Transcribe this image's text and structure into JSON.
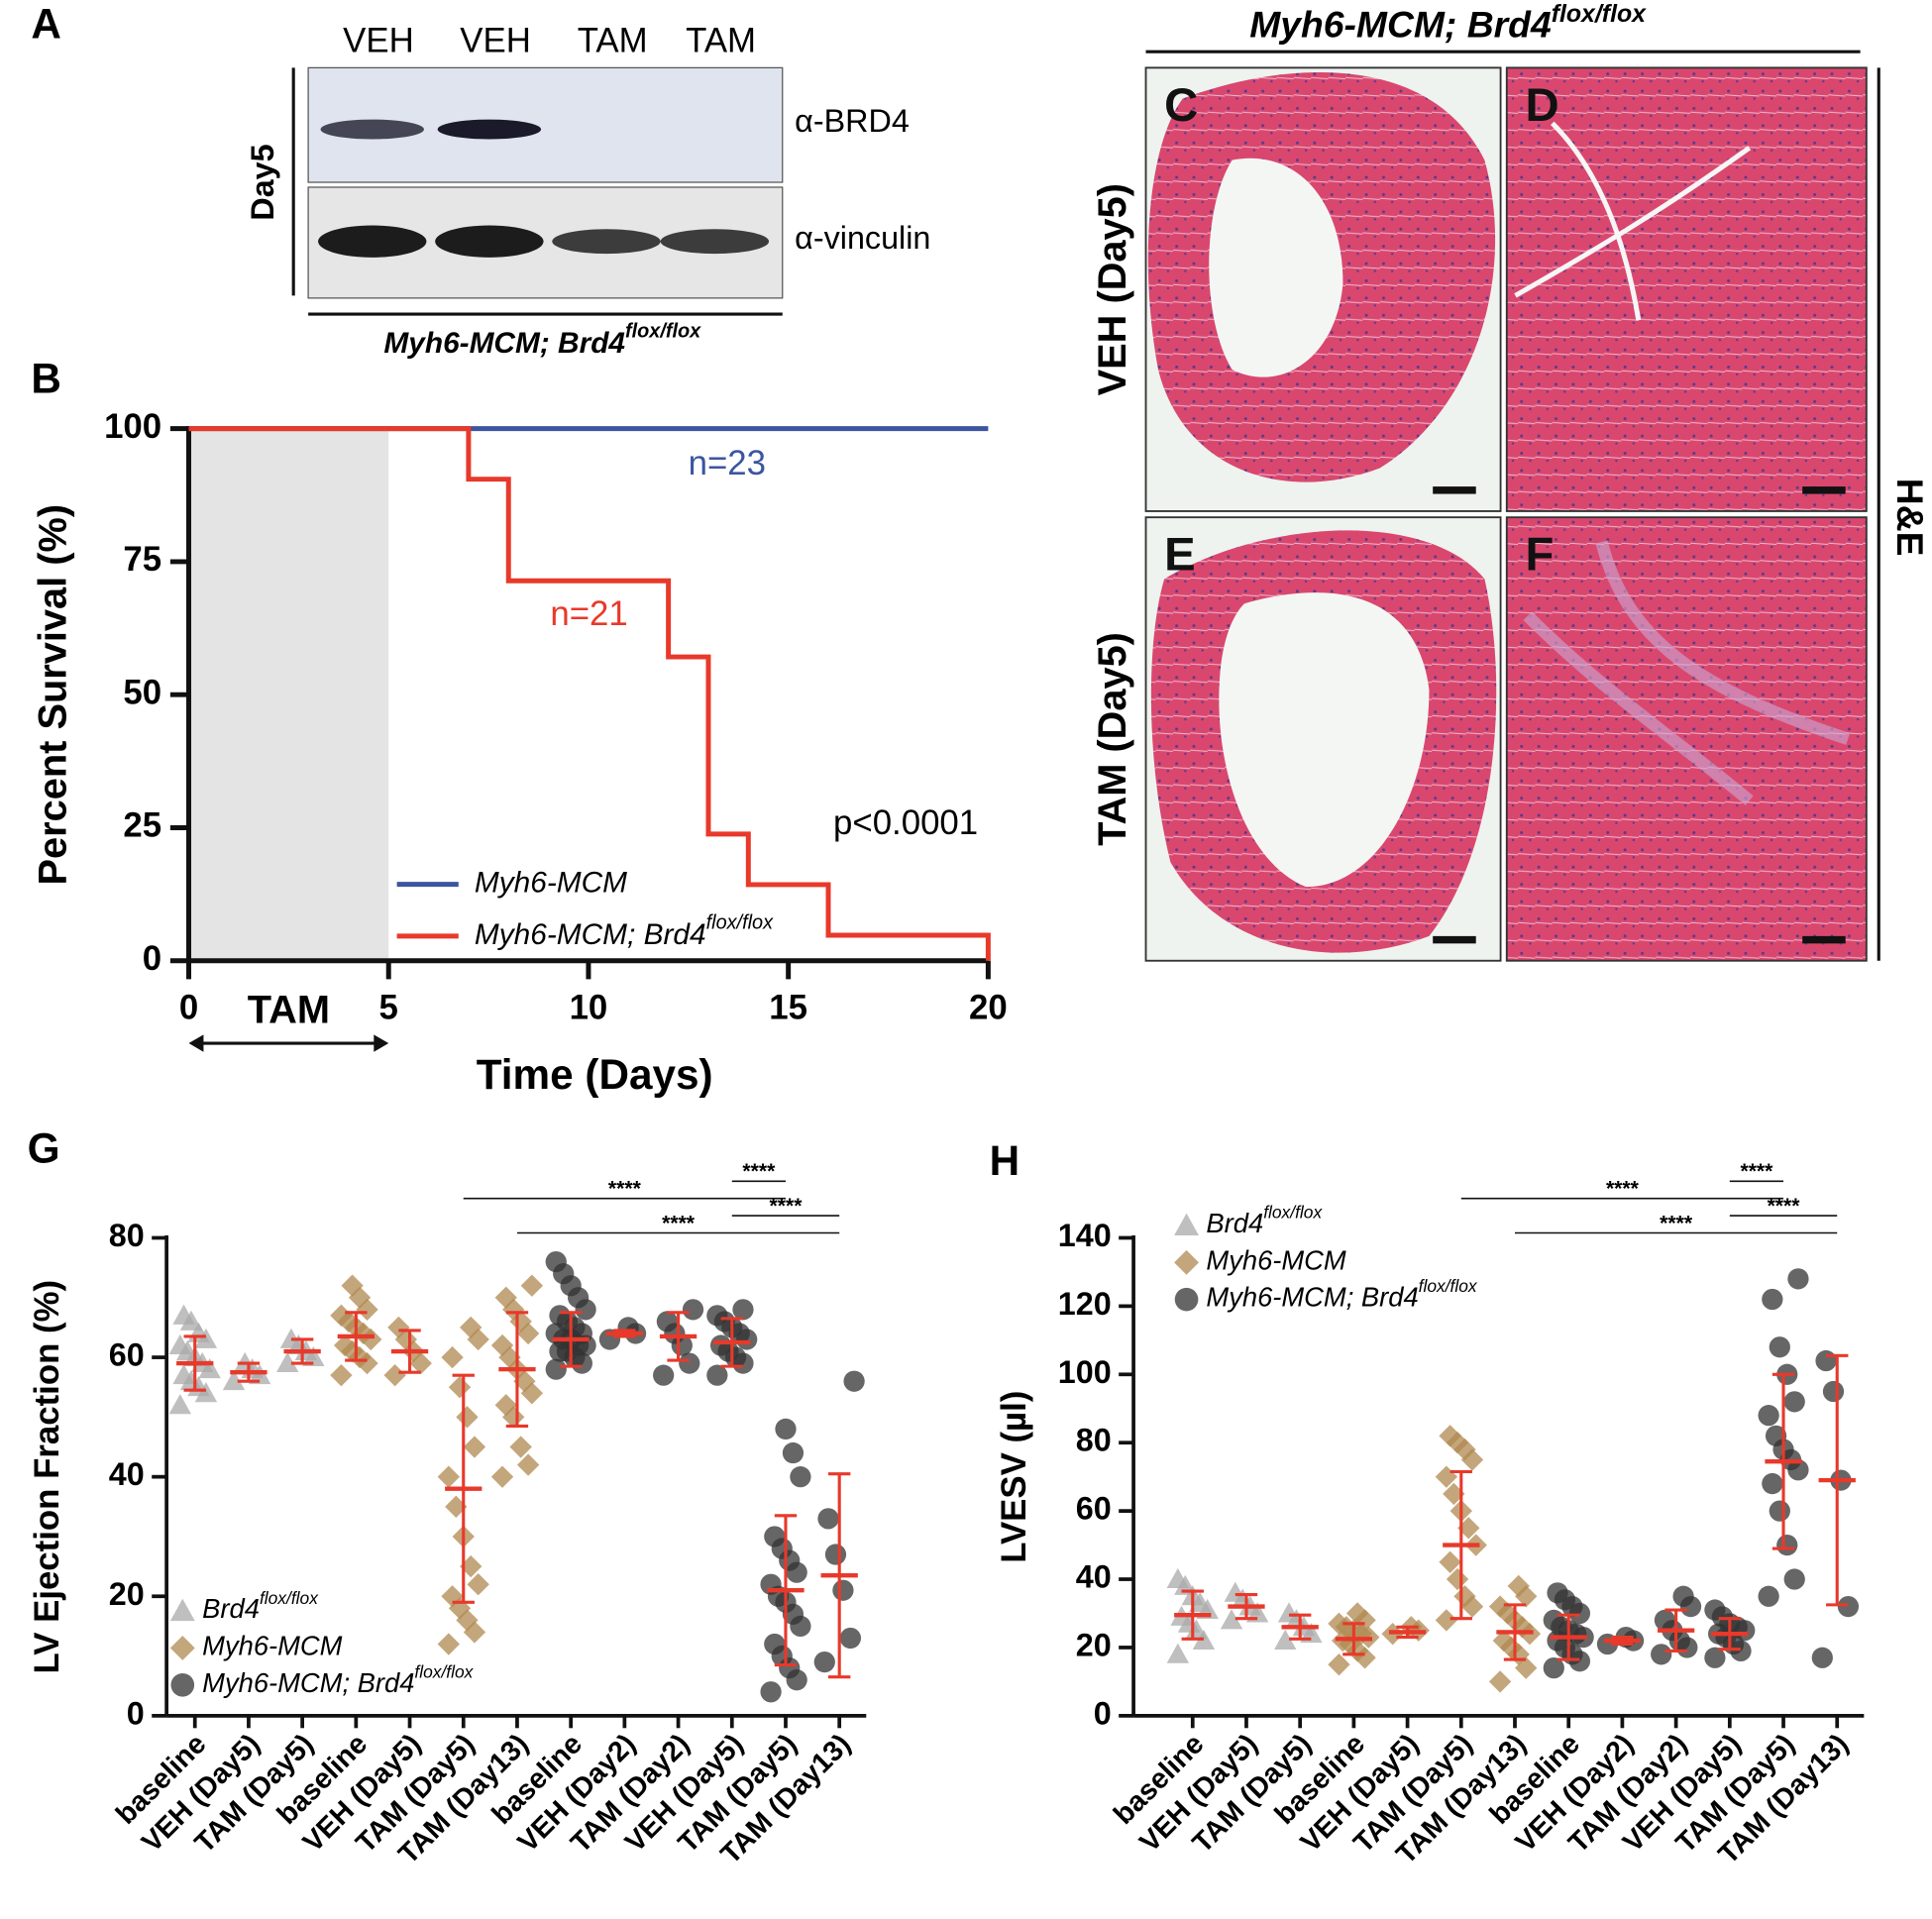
{
  "figure": {
    "panel_A": {
      "letter": "A",
      "lanes": [
        "VEH",
        "VEH",
        "TAM",
        "TAM"
      ],
      "timepoint": "Day5",
      "antibodies": [
        "α-BRD4",
        "α-vinculin"
      ],
      "genotype": "Myh6-MCM; Brd4",
      "genotype_sup": "flox/flox"
    },
    "panel_histology": {
      "letters": [
        "C",
        "D",
        "E",
        "F"
      ],
      "title": "Myh6-MCM; Brd4",
      "title_sup": "flox/flox",
      "rows": [
        "VEH (Day5)",
        "TAM (Day5)"
      ],
      "stain": "H&E"
    }
  },
  "chart_data": [
    {
      "panel": "B",
      "type": "step",
      "ylabel": "Percent Survival (%)",
      "xlabel": "Time (Days)",
      "x": [
        0,
        7,
        8,
        12,
        13,
        14,
        16,
        20
      ],
      "series": [
        {
          "name": "Myh6-MCM",
          "color": "#3b55a0",
          "values": [
            100,
            100,
            100,
            100,
            100,
            100,
            100,
            100
          ],
          "annotation": "n=23"
        },
        {
          "name": "Myh6-MCM; Brd4",
          "name_sup": "flox/flox",
          "color": "#e8392a",
          "values": [
            100,
            90.5,
            71.4,
            57.1,
            23.8,
            14.3,
            4.8,
            0
          ],
          "annotation": "n=21"
        }
      ],
      "xlim": [
        0,
        20
      ],
      "ylim": [
        0,
        100
      ],
      "xticks": [
        0,
        5,
        10,
        15,
        20
      ],
      "yticks": [
        0,
        25,
        50,
        75,
        100
      ],
      "shade": [
        0,
        5
      ],
      "shade_label": "TAM",
      "annotation": "p<0.0001",
      "legend": "lower left"
    },
    {
      "panel": "G",
      "type": "dot",
      "ylabel": "LV Ejection Fraction (%)",
      "categories": [
        "baseline",
        "VEH (Day5)",
        "TAM (Day5)",
        "baseline",
        "VEH (Day5)",
        "TAM (Day5)",
        "TAM (Day13)",
        "baseline",
        "VEH (Day2)",
        "TAM (Day2)",
        "VEH (Day5)",
        "TAM (Day5)",
        "TAM (Day13)"
      ],
      "ylim": [
        0,
        80
      ],
      "yticks": [
        0,
        20,
        40,
        60,
        80
      ],
      "legend": "lower left",
      "error_color": "#e8392a",
      "series": [
        {
          "name": "Brd4",
          "name_sup": "flox/flox",
          "color": "#aaaaaa",
          "marker": "triangle",
          "points": [
            [
              52,
              54,
              55,
              56,
              57,
              58,
              59,
              60,
              61,
              62,
              63,
              64,
              66,
              67
            ],
            [
              56,
              57,
              58,
              59
            ],
            [
              59,
              60,
              61,
              62,
              63
            ],
            null,
            null,
            null,
            null,
            null,
            null,
            null,
            null,
            null,
            null
          ],
          "mean": [
            59,
            57.5,
            61,
            null,
            null,
            null,
            null,
            null,
            null,
            null,
            null,
            null,
            null
          ],
          "sd": [
            4.5,
            1.5,
            2,
            null,
            null,
            null,
            null,
            null,
            null,
            null,
            null,
            null,
            null
          ]
        },
        {
          "name": "Myh6-MCM",
          "color": "#b08850",
          "marker": "diamond",
          "points": [
            null,
            null,
            null,
            [
              57,
              59,
              60,
              61,
              62,
              63,
              64,
              65,
              66,
              67,
              68,
              70,
              72
            ],
            [
              57,
              59,
              61,
              63,
              65
            ],
            [
              12,
              14,
              16,
              18,
              20,
              22,
              25,
              30,
              35,
              40,
              45,
              50,
              55,
              60,
              63,
              65
            ],
            [
              40,
              42,
              45,
              50,
              52,
              54,
              56,
              58,
              60,
              62,
              64,
              66,
              68,
              70,
              72
            ],
            null,
            null,
            null,
            null,
            null,
            null
          ],
          "mean": [
            null,
            null,
            null,
            63.5,
            61,
            38,
            58,
            null,
            null,
            null,
            null,
            null,
            null
          ],
          "sd": [
            null,
            null,
            null,
            4,
            3.5,
            19,
            9.5,
            null,
            null,
            null,
            null,
            null,
            null
          ]
        },
        {
          "name": "Myh6-MCM; Brd4",
          "name_sup": "flox/flox",
          "color": "#333333",
          "marker": "circle",
          "points": [
            null,
            null,
            null,
            null,
            null,
            null,
            null,
            [
              58,
              59,
              60,
              61,
              61,
              62,
              62,
              63,
              63,
              64,
              64,
              65,
              66,
              67,
              68,
              70,
              72,
              74,
              76
            ],
            [
              63,
              64,
              65
            ],
            [
              57,
              59,
              62,
              64,
              66,
              68
            ],
            [
              57,
              59,
              60,
              61,
              62,
              63,
              64,
              65,
              66,
              67,
              68
            ],
            [
              4,
              6,
              8,
              10,
              12,
              15,
              17,
              19,
              20,
              22,
              24,
              26,
              28,
              30,
              40,
              44,
              48
            ],
            [
              9,
              13,
              21,
              27,
              33,
              56
            ]
          ],
          "mean": [
            null,
            null,
            null,
            null,
            null,
            null,
            null,
            63,
            64,
            63.5,
            62.5,
            21,
            23.5
          ],
          "sd": [
            null,
            null,
            null,
            null,
            null,
            null,
            null,
            4.5,
            0.5,
            4,
            4,
            12.5,
            17
          ]
        }
      ],
      "brackets": [
        {
          "label": "****",
          "from": 10,
          "to": 11
        },
        {
          "label": "****",
          "from": 5,
          "to": 11
        },
        {
          "label": "****",
          "from": 10,
          "to": 12
        },
        {
          "label": "****",
          "from": 6,
          "to": 12
        }
      ]
    },
    {
      "panel": "H",
      "type": "dot",
      "ylabel": "LVESV (µl)",
      "categories": [
        "baseline",
        "VEH (Day5)",
        "TAM (Day5)",
        "baseline",
        "VEH (Day5)",
        "TAM (Day5)",
        "TAM (Day13)",
        "baseline",
        "VEH (Day2)",
        "TAM (Day2)",
        "VEH (Day5)",
        "TAM (Day5)",
        "TAM (Day13)"
      ],
      "ylim": [
        0,
        140
      ],
      "yticks": [
        0,
        20,
        40,
        60,
        80,
        100,
        120,
        140
      ],
      "legend": "upper left",
      "error_color": "#e8392a",
      "series": [
        {
          "name": "Brd4",
          "name_sup": "flox/flox",
          "color": "#aaaaaa",
          "marker": "triangle",
          "points": [
            [
              18,
              22,
              25,
              27,
              29,
              31,
              33,
              35,
              38,
              40
            ],
            [
              28,
              30,
              32,
              34,
              36
            ],
            [
              22,
              24,
              26,
              28,
              30
            ],
            null,
            null,
            null,
            null,
            null,
            null,
            null,
            null,
            null,
            null
          ],
          "mean": [
            29.5,
            32,
            26,
            null,
            null,
            null,
            null,
            null,
            null,
            null,
            null,
            null,
            null
          ],
          "sd": [
            7,
            3.5,
            3.5,
            null,
            null,
            null,
            null,
            null,
            null,
            null,
            null,
            null,
            null
          ]
        },
        {
          "name": "Myh6-MCM",
          "color": "#b08850",
          "marker": "diamond",
          "points": [
            null,
            null,
            null,
            [
              15,
              17,
              19,
              21,
              22,
              23,
              24,
              25,
              26,
              27,
              28,
              30
            ],
            [
              24,
              25,
              26
            ],
            [
              28,
              32,
              35,
              40,
              45,
              50,
              55,
              60,
              65,
              70,
              75,
              78,
              80,
              82
            ],
            [
              10,
              14,
              18,
              20,
              22,
              24,
              26,
              28,
              30,
              32,
              35,
              38
            ],
            null,
            null,
            null,
            null,
            null,
            null
          ],
          "mean": [
            null,
            null,
            null,
            22.5,
            24.5,
            50,
            24.5,
            null,
            null,
            null,
            null,
            null,
            null
          ],
          "sd": [
            null,
            null,
            null,
            4.5,
            1.5,
            21.5,
            8,
            null,
            null,
            null,
            null,
            null,
            null
          ]
        },
        {
          "name": "Myh6-MCM; Brd4",
          "name_sup": "flox/flox",
          "color": "#333333",
          "marker": "circle",
          "points": [
            null,
            null,
            null,
            null,
            null,
            null,
            null,
            [
              14,
              16,
              18,
              20,
              22,
              23,
              24,
              25,
              26,
              28,
              30,
              32,
              34,
              36
            ],
            [
              21,
              22,
              23
            ],
            [
              18,
              20,
              22,
              25,
              28,
              32,
              35
            ],
            [
              17,
              19,
              21,
              23,
              24,
              25,
              26,
              27,
              29,
              31
            ],
            [
              35,
              40,
              50,
              60,
              68,
              72,
              75,
              78,
              82,
              88,
              92,
              100,
              108,
              122,
              128
            ],
            [
              17,
              32,
              69,
              95,
              104
            ]
          ],
          "mean": [
            null,
            null,
            null,
            null,
            null,
            null,
            null,
            23,
            22,
            25,
            24,
            74.5,
            69
          ],
          "sd": [
            null,
            null,
            null,
            null,
            null,
            null,
            null,
            6.5,
            1,
            6,
            4.5,
            25.5,
            36.5
          ]
        }
      ],
      "brackets": [
        {
          "label": "****",
          "from": 10,
          "to": 11
        },
        {
          "label": "****",
          "from": 5,
          "to": 11
        },
        {
          "label": "****",
          "from": 10,
          "to": 12
        },
        {
          "label": "****",
          "from": 6,
          "to": 12
        }
      ]
    }
  ]
}
